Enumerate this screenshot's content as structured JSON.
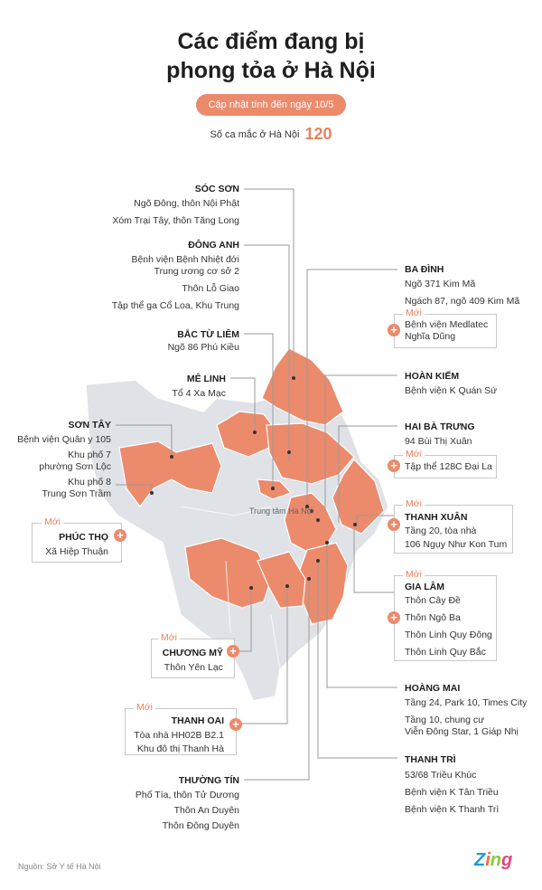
{
  "title_line1": "Các điểm đang bị",
  "title_line2": "phong tỏa ở Hà Nội",
  "update": "Cập nhật tính đến ngày 10/5",
  "cases_label": "Số ca mắc ở Hà Nội",
  "cases_value": "120",
  "new_tag": "Mới",
  "center_label": "Trung tâm Hà Nội",
  "source": "Nguồn: Sở Y tế Hà Nội",
  "logo": {
    "z": "Z",
    "i": "i",
    "n": "n",
    "g": "g"
  },
  "colors": {
    "lockdown": "#ec8a6c",
    "district": "#dfe2e7",
    "accent": "#e8825f"
  },
  "districts": {
    "soc_son": {
      "name": "SÓC SƠN",
      "places": [
        "Ngõ Đông, thôn Nội Phật",
        "Xóm Trại Tây, thôn Tăng Long"
      ]
    },
    "dong_anh": {
      "name": "ĐÔNG ANH",
      "places": [
        "Bệnh viện Bệnh Nhiệt đới",
        "Trung ương cơ sở 2",
        "Thôn Lỗ Giao",
        "Tập thể ga Cổ Loa, Khu Trung"
      ]
    },
    "bac_tu_liem": {
      "name": "BẮC TỪ LIÊM",
      "places": [
        "Ngõ 86 Phú Kiều"
      ]
    },
    "me_linh": {
      "name": "MÊ LINH",
      "places": [
        "Tổ 4 Xa Mạc"
      ]
    },
    "son_tay": {
      "name": "SƠN TÂY",
      "places": [
        "Bệnh viện Quân y 105",
        "Khu phố 7",
        "phường Sơn Lộc",
        "Khu phố 8",
        "Trung Sơn Trầm"
      ]
    },
    "phuc_tho": {
      "name": "PHÚC THỌ",
      "places": [
        "Xã Hiệp Thuận"
      ]
    },
    "chuong_my": {
      "name": "CHƯƠNG MỸ",
      "places": [
        "Thôn Yên Lạc"
      ]
    },
    "thanh_oai": {
      "name": "THANH OAI",
      "places": [
        "Tòa nhà HH02B B2.1",
        "Khu đô thị Thanh Hà"
      ]
    },
    "thuong_tin": {
      "name": "THƯỜNG TÍN",
      "places": [
        "Phố Tía, thôn Tử Dương",
        "Thôn An Duyên",
        "Thôn Đông Duyên"
      ]
    },
    "ba_dinh": {
      "name": "BA ĐÌNH",
      "places": [
        "Ngõ 371 Kim Mã",
        "Ngách 87, ngõ 409 Kim Mã"
      ],
      "new": [
        "Bệnh viện Medlatec",
        "Nghĩa Dũng"
      ]
    },
    "hoan_kiem": {
      "name": "HOÀN KIẾM",
      "places": [
        "Bệnh viện K Quán Sứ"
      ]
    },
    "hai_ba_trung": {
      "name": "HAI BÀ TRƯNG",
      "places": [
        "94 Bùi Thị Xuân"
      ],
      "new": [
        "Tập thể 128C Đại La"
      ]
    },
    "thanh_xuan": {
      "name": "THANH XUÂN",
      "places": [
        "Tầng 20, tòa nhà",
        "106 Ngụy Như Kon Tum"
      ]
    },
    "gia_lam": {
      "name": "GIA LÂM",
      "places": [
        "Thôn Cây Đề",
        "Thôn Ngô Ba",
        "Thôn Linh Quy Đông",
        "Thôn Linh Quy Bắc"
      ]
    },
    "hoang_mai": {
      "name": "HOÀNG MAI",
      "places": [
        "Tầng 24, Park 10, Times City",
        "Tầng 10, chung cư",
        "Viễn Đông Star, 1 Giáp Nhị"
      ]
    },
    "thanh_tri": {
      "name": "THANH TRÌ",
      "places": [
        "53/68 Triều Khúc",
        "Bệnh viện K Tân Triều",
        "Bệnh viện K Thanh Trì"
      ]
    }
  }
}
